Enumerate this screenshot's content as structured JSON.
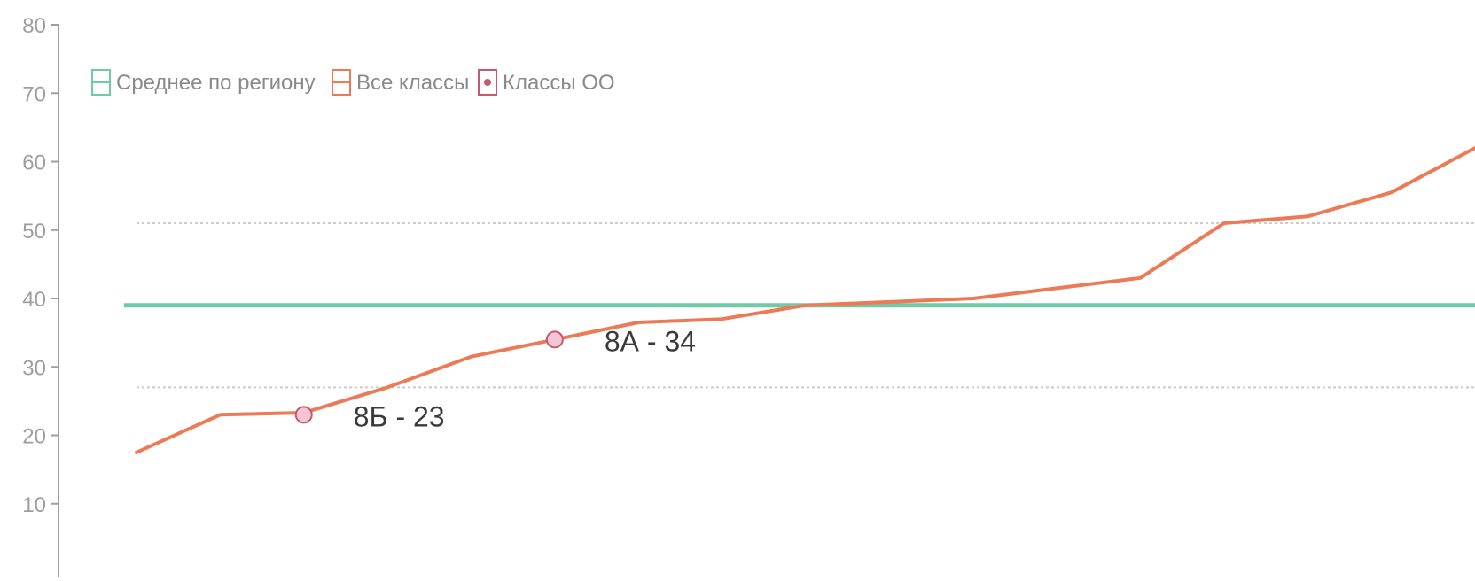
{
  "chart_data": {
    "type": "line",
    "ylim": [
      0,
      80
    ],
    "yticks": [
      "10",
      "20",
      "30",
      "40",
      "50",
      "60",
      "70",
      "80"
    ],
    "grid": false,
    "legend_position": "top-left",
    "legend": {
      "region_avg": "Среднее по региону",
      "all_classes": "Все классы",
      "school_classes": "Классы ОО"
    },
    "colors": {
      "region_avg": "#6fcaa8",
      "all_classes": "#ec7a57",
      "school_marker_fill": "#f4c6d3",
      "school_marker_stroke": "#c45a70",
      "reference_lines": "#cccccc",
      "axis": "#9e9e9e"
    },
    "x_range": [
      0,
      17
    ],
    "region_average": 39,
    "reference_lines": [
      51,
      27
    ],
    "series": [
      {
        "role": "all_classes",
        "points": [
          [
            1,
            17.5
          ],
          [
            2,
            23
          ],
          [
            3,
            23.3
          ],
          [
            4,
            27
          ],
          [
            5,
            31.5
          ],
          [
            6,
            34
          ],
          [
            7,
            36.5
          ],
          [
            8,
            37
          ],
          [
            9,
            39
          ],
          [
            10,
            39.5
          ],
          [
            11,
            40
          ],
          [
            12,
            41.5
          ],
          [
            13,
            43
          ],
          [
            14,
            51
          ],
          [
            15,
            52
          ],
          [
            16,
            55.5
          ],
          [
            17,
            62
          ]
        ]
      }
    ],
    "highlighted_points": [
      {
        "x": 3,
        "y": 23,
        "label": "8Б - 23"
      },
      {
        "x": 6,
        "y": 34,
        "label": "8А - 34"
      }
    ]
  }
}
